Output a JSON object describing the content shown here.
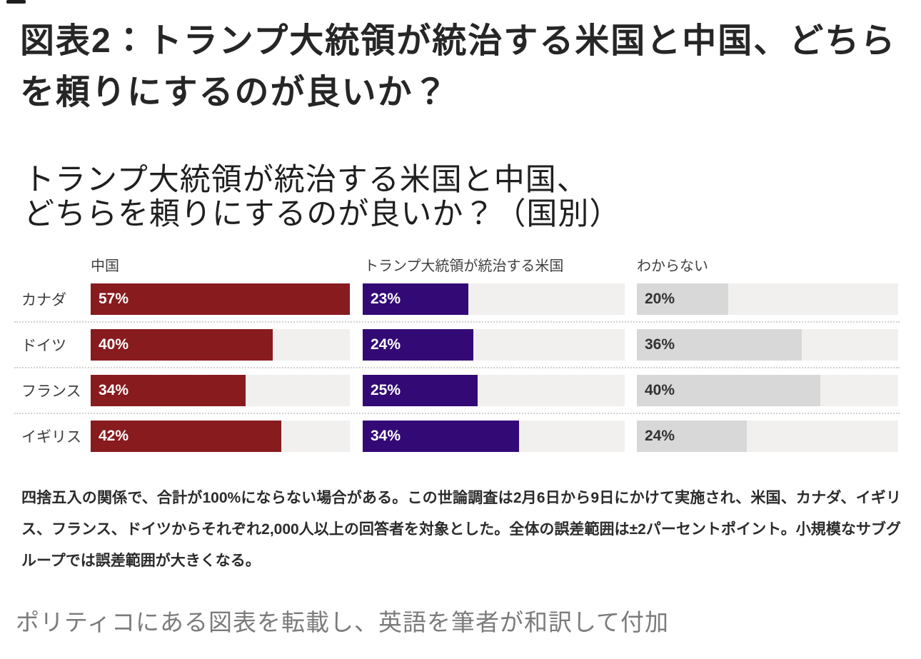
{
  "page": {
    "heading": "図表2：トランプ大統領が統治する米国と中国、どちらを頼りにするのが良いか？",
    "caption": "ポリティコにある図表を転載し、英語を筆者が和訳して付加"
  },
  "chart": {
    "title_lines": {
      "0": "トランプ大統領が統治する米国と中国、",
      "1": "どちらを頼りにするのが良いか？（国別）"
    },
    "footnote": "四捨五入の関係で、合計が100%にならない場合がある。この世論調査は2月6日から9日にかけて実施され、米国、カナダ、イギリス、フランス、ドイツからそれぞれ2,000人以上の回答者を対象とした。全体の誤差範囲は±2パーセントポイント。小規模なサブグループでは誤差範囲が大きくなる。"
  },
  "chart_data": {
    "type": "bar",
    "orientation": "horizontal",
    "title": "トランプ大統領が統治する米国と中国、どちらを頼りにするのが良いか？（国別）",
    "categories": [
      "カナダ",
      "ドイツ",
      "フランス",
      "イギリス"
    ],
    "series": [
      {
        "name": "中国",
        "color": "#871b1e",
        "values": [
          57,
          40,
          34,
          42
        ]
      },
      {
        "name": "トランプ大統領が統治する米国",
        "color": "#330a75",
        "values": [
          23,
          24,
          25,
          34
        ]
      },
      {
        "name": "わからない",
        "color": "#d8d8d8",
        "values": [
          20,
          36,
          40,
          24
        ]
      }
    ],
    "value_suffix": "%",
    "xmax": 57,
    "track_color": "#f1f0ee",
    "grid": "off",
    "legend_position": "top-as-column-headers"
  }
}
